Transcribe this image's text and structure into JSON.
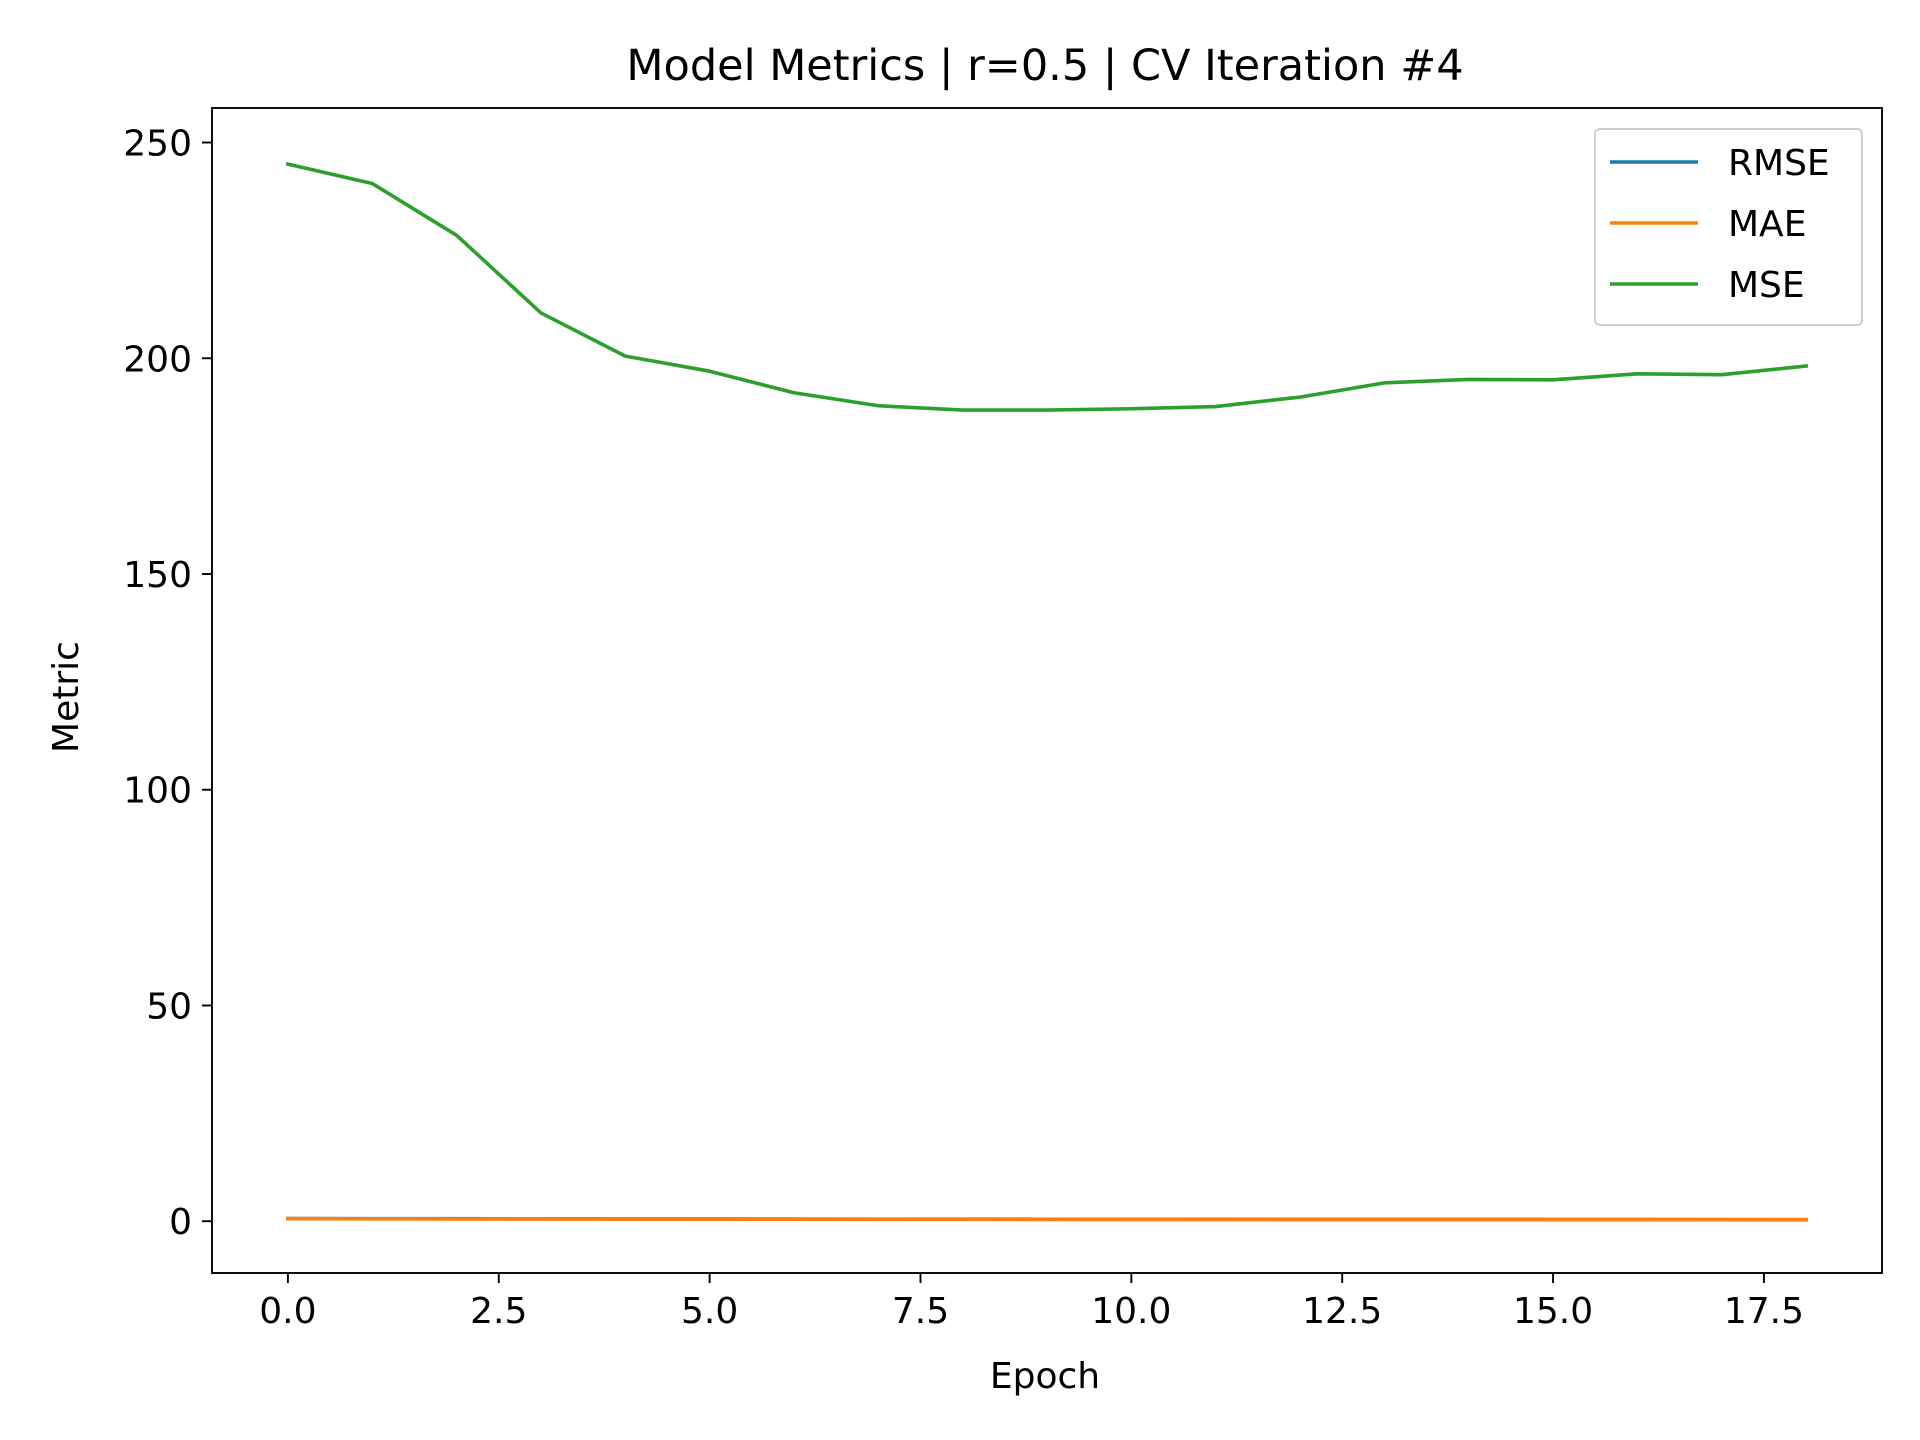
{
  "chart_data": {
    "type": "line",
    "title": "Model Metrics | r=0.5 | CV Iteration #4",
    "xlabel": "Epoch",
    "ylabel": "Metric",
    "xlim": [
      -0.9,
      18.9
    ],
    "ylim": [
      -12,
      258
    ],
    "xticks": [
      0.0,
      2.5,
      5.0,
      7.5,
      10.0,
      12.5,
      15.0,
      17.5
    ],
    "xtick_labels": [
      "0.0",
      "2.5",
      "5.0",
      "7.5",
      "10.0",
      "12.5",
      "15.0",
      "17.5"
    ],
    "yticks": [
      0,
      50,
      100,
      150,
      200,
      250
    ],
    "ytick_labels": [
      "0",
      "50",
      "100",
      "150",
      "200",
      "250"
    ],
    "grid": false,
    "legend_position": "top-right",
    "x": [
      0,
      1,
      2,
      3,
      4,
      5,
      6,
      7,
      8,
      9,
      10,
      11,
      12,
      13,
      14,
      15,
      16,
      17,
      18
    ],
    "series": [
      {
        "name": "RMSE",
        "color": "#1f77b4",
        "values": [
          0.62,
          0.6,
          0.58,
          0.56,
          0.54,
          0.52,
          0.5,
          0.48,
          0.47,
          0.46,
          0.45,
          0.44,
          0.43,
          0.42,
          0.41,
          0.4,
          0.39,
          0.38,
          0.37
        ]
      },
      {
        "name": "MAE",
        "color": "#ff7f0e",
        "values": [
          0.58,
          0.56,
          0.54,
          0.52,
          0.5,
          0.48,
          0.46,
          0.44,
          0.43,
          0.42,
          0.41,
          0.4,
          0.39,
          0.38,
          0.37,
          0.36,
          0.35,
          0.34,
          0.33
        ]
      },
      {
        "name": "MSE",
        "color": "#2ca02c",
        "values": [
          245,
          240.5,
          228.5,
          210.5,
          200.5,
          197,
          192,
          189,
          188,
          188,
          188.3,
          188.8,
          191,
          194.3,
          195.1,
          195,
          196.4,
          196.2,
          198.2
        ]
      }
    ]
  }
}
